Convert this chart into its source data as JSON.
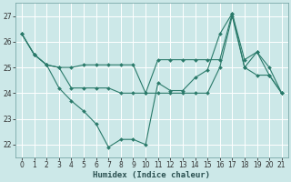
{
  "xlabel": "Humidex (Indice chaleur)",
  "background_color": "#cce8e8",
  "grid_color": "#ffffff",
  "line_color": "#2a7a6a",
  "xlim_min": -0.5,
  "xlim_max": 21.5,
  "ylim_min": 21.5,
  "ylim_max": 27.5,
  "yticks": [
    22,
    23,
    24,
    25,
    26,
    27
  ],
  "xticks": [
    0,
    1,
    2,
    3,
    4,
    5,
    6,
    7,
    8,
    9,
    10,
    11,
    12,
    13,
    14,
    15,
    16,
    17,
    18,
    19,
    20,
    21
  ],
  "s1_x": [
    0,
    1,
    2,
    3,
    4,
    5,
    6,
    7,
    8,
    9,
    10,
    11,
    12,
    13,
    14,
    15,
    16,
    17,
    18,
    19,
    20,
    21
  ],
  "s1_y": [
    26.3,
    25.5,
    25.1,
    24.2,
    23.7,
    23.3,
    22.8,
    21.9,
    22.2,
    22.2,
    22.0,
    24.4,
    24.1,
    24.1,
    24.6,
    24.9,
    26.3,
    27.1,
    25.3,
    25.6,
    24.7,
    24.0
  ],
  "s2_x": [
    0,
    1,
    2,
    3,
    4,
    5,
    6,
    7,
    8,
    9,
    10,
    11,
    12,
    13,
    14,
    15,
    16,
    17,
    18,
    19,
    20,
    21
  ],
  "s2_y": [
    26.3,
    25.5,
    25.1,
    25.0,
    25.0,
    25.1,
    25.1,
    25.1,
    25.1,
    25.1,
    24.0,
    25.3,
    25.3,
    25.3,
    25.3,
    25.3,
    25.3,
    27.1,
    25.0,
    25.6,
    25.0,
    24.0
  ],
  "s3_x": [
    0,
    1,
    2,
    3,
    4,
    5,
    6,
    7,
    8,
    9,
    10,
    11,
    12,
    13,
    14,
    15,
    16,
    17,
    18,
    19,
    20,
    21
  ],
  "s3_y": [
    26.3,
    25.5,
    25.1,
    25.0,
    24.2,
    24.2,
    24.2,
    24.2,
    24.0,
    24.0,
    24.0,
    24.0,
    24.0,
    24.0,
    24.0,
    24.0,
    25.0,
    27.0,
    25.0,
    24.7,
    24.7,
    24.0
  ]
}
